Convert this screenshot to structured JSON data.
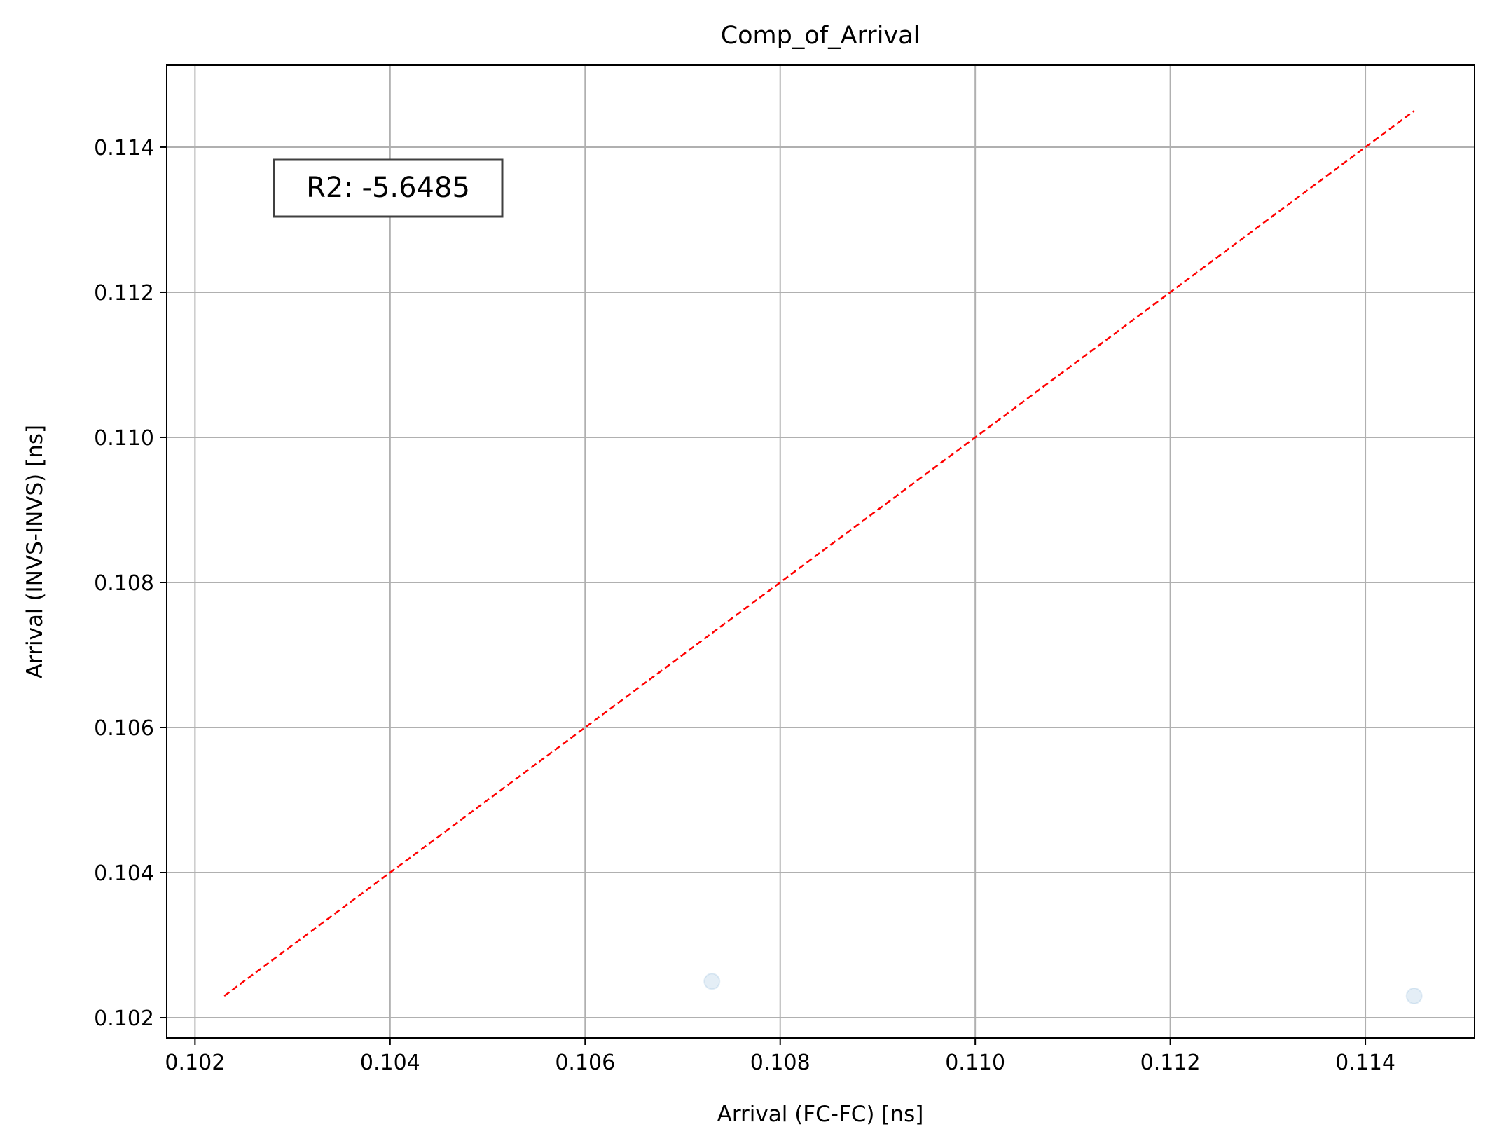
{
  "chart_data": {
    "type": "scatter",
    "title": "Comp_of_Arrival",
    "xlabel": "Arrival (FC-FC) [ns]",
    "ylabel": "Arrival (INVS-INVS) [ns]",
    "xlim": [
      0.10171,
      0.11512
    ],
    "ylim": [
      0.10172,
      0.11513
    ],
    "xticks": [
      "0.102",
      "0.104",
      "0.106",
      "0.108",
      "0.110",
      "0.112",
      "0.114"
    ],
    "yticks": [
      "0.102",
      "0.104",
      "0.106",
      "0.108",
      "0.110",
      "0.112",
      "0.114"
    ],
    "grid": true,
    "points": [
      {
        "x": 0.1073,
        "y": 0.1025
      },
      {
        "x": 0.1145,
        "y": 0.1023
      }
    ],
    "reference_line": {
      "x": [
        0.1023,
        0.1145
      ],
      "y": [
        0.1023,
        0.1145
      ],
      "style": "dashed",
      "color": "#ff0000"
    },
    "annotation": {
      "text": "R2: -5.6485",
      "position": "top-left"
    },
    "colors": {
      "points": "#1f77b4",
      "line": "#ff0000",
      "grid": "#b0b0b0"
    }
  }
}
